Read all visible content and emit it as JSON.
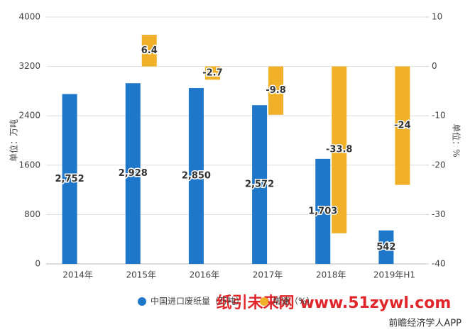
{
  "chart_data": {
    "type": "bar",
    "categories": [
      "2014年",
      "2015年",
      "2016年",
      "2017年",
      "2018年",
      "2019年H1"
    ],
    "series": [
      {
        "name": "中国进口废纸量（万吨）",
        "color": "#1f77c9",
        "values": [
          2752,
          2928,
          2850,
          2572,
          1703,
          542
        ],
        "value_labels": [
          "2,752",
          "2,928",
          "2,850",
          "2,572",
          "1,703",
          "542"
        ]
      },
      {
        "name": "增速（%）",
        "color": "#f0b027",
        "axis": "y2",
        "values": [
          null,
          6.4,
          -2.7,
          -9.8,
          -33.8,
          -24
        ]
      }
    ],
    "ylabel": "单位：万吨",
    "y2label": "单位：%",
    "ylim": [
      0,
      4000
    ],
    "yticks": [
      0,
      800,
      1600,
      2400,
      3200,
      4000
    ],
    "y2lim": [
      -40,
      10
    ],
    "y2ticks": [
      -40,
      -30,
      -20,
      -10,
      0,
      10
    ],
    "grid": true,
    "watermark": "纸引未来网 www.51zywl.com",
    "source": "前瞻经济学人APP"
  }
}
